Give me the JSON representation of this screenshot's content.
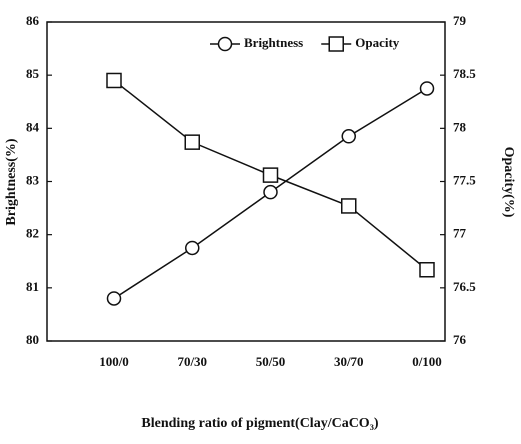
{
  "chart_data": {
    "type": "line",
    "x_label": "Blending ratio of pigment(Clay/CaCO₃)",
    "y_label": "Brightness(%)",
    "y2_label": "Opacity(%)",
    "categories": [
      "100/0",
      "70/30",
      "50/50",
      "30/70",
      "0/100"
    ],
    "series": [
      {
        "name": "Brightness",
        "color": "#111111",
        "marker": "circle",
        "values": [
          80.8,
          81.75,
          82.8,
          83.85,
          84.75
        ]
      },
      {
        "name": "Opacity",
        "color": "#111111",
        "marker": "square",
        "axis": "y2",
        "values": [
          78.45,
          77.87,
          77.56,
          77.27,
          76.67
        ]
      }
    ],
    "ylim": [
      80,
      86
    ],
    "yticks": [
      80,
      81,
      82,
      83,
      84,
      85,
      86
    ],
    "y2lim": [
      76,
      79
    ],
    "y2ticks": [
      76,
      76.5,
      77,
      77.5,
      78,
      78.5,
      79
    ],
    "legend": "upper center",
    "grid": false
  }
}
